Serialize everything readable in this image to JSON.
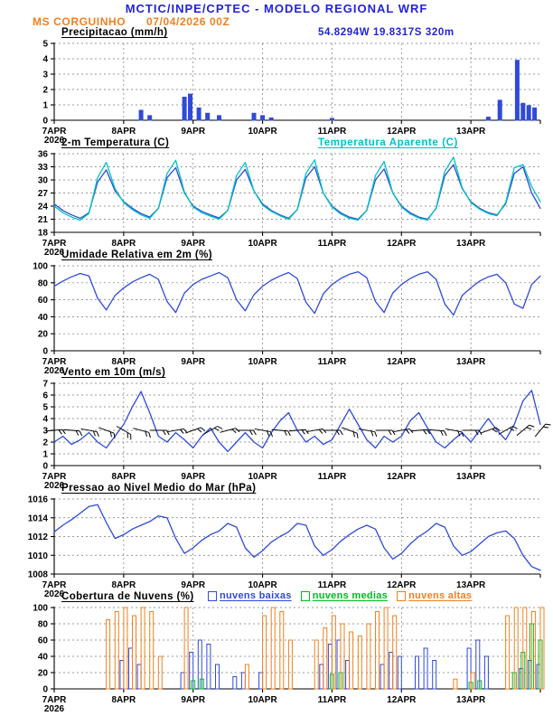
{
  "header": {
    "title": "MCTIC/INPE/CPTEC - MODELO REGIONAL WRF",
    "station": "MS CORGUINHO",
    "datetime": "07/04/2026 00Z",
    "location": "54.8294W 19.8317S 320m"
  },
  "colors": {
    "title": "#2323d7",
    "accent_orange": "#f08020",
    "line_blue": "#2f4bd7",
    "cyan": "#00c2c2",
    "green": "#00bb22",
    "grid": "#777777"
  },
  "x_axis": {
    "hours": 168,
    "day_labels": [
      "7APR",
      "8APR",
      "9APR",
      "10APR",
      "11APR",
      "12APR",
      "13APR"
    ],
    "year_label": "2026"
  },
  "chart_data": [
    {
      "id": "precipitacao",
      "type": "bar",
      "title": "Precipitacao (mm/h)",
      "ylim": [
        0,
        5
      ],
      "yticks": [
        0,
        1,
        2,
        3,
        4,
        5
      ],
      "series": [
        {
          "name": "precipitacao",
          "type": "bar",
          "filled": true,
          "color": "#2f4bd7",
          "x": [
            30,
            33,
            45,
            47,
            50,
            53,
            57,
            69,
            72,
            75,
            96,
            150,
            154,
            160,
            162,
            164,
            166
          ],
          "values": [
            0.65,
            0.3,
            1.5,
            1.7,
            0.8,
            0.45,
            0.3,
            0.45,
            0.3,
            0.15,
            0.12,
            0.2,
            1.3,
            3.9,
            1.1,
            0.95,
            0.8
          ]
        }
      ]
    },
    {
      "id": "temperatura",
      "type": "line",
      "title": "2-m Temperatura (C)",
      "ylim": [
        18,
        36
      ],
      "yticks": [
        18,
        21,
        24,
        27,
        30,
        33,
        36
      ],
      "series": [
        {
          "name": "2-m Temperatura (C)",
          "type": "line",
          "color": "#2f4bd7",
          "x_start": 0,
          "x_step": 3,
          "values": [
            24.5,
            23.0,
            22.0,
            21.2,
            22.5,
            29.5,
            32.3,
            27.5,
            25.0,
            23.5,
            22.3,
            21.5,
            23.5,
            30.5,
            32.8,
            27.0,
            24.0,
            22.8,
            22.0,
            21.3,
            23.0,
            30.0,
            32.4,
            27.5,
            24.5,
            23.0,
            22.0,
            21.2,
            23.2,
            30.5,
            33.0,
            27.0,
            24.0,
            22.5,
            21.5,
            21.0,
            23.0,
            30.0,
            32.5,
            27.0,
            24.0,
            22.5,
            21.5,
            21.0,
            23.5,
            31.0,
            33.5,
            28.0,
            25.0,
            23.5,
            22.5,
            22.0,
            24.5,
            31.5,
            33.0,
            27.0,
            23.5
          ]
        },
        {
          "name": "Temperatura Aparente (C)",
          "type": "line",
          "color": "#00c2c2",
          "x_start": 0,
          "x_step": 3,
          "values": [
            24.0,
            22.5,
            21.5,
            20.8,
            22.3,
            30.5,
            34.0,
            28.0,
            24.8,
            23.2,
            22.0,
            21.2,
            23.5,
            31.5,
            34.5,
            27.2,
            23.8,
            22.5,
            21.7,
            21.0,
            23.0,
            31.0,
            34.0,
            27.5,
            24.2,
            22.8,
            21.8,
            21.0,
            23.2,
            31.5,
            34.6,
            27.0,
            23.8,
            22.2,
            21.2,
            20.8,
            23.0,
            31.0,
            34.2,
            27.0,
            23.8,
            22.2,
            21.3,
            20.8,
            23.6,
            32.0,
            35.2,
            28.2,
            24.8,
            23.3,
            22.3,
            21.8,
            24.8,
            32.8,
            33.5,
            28.5,
            25.0
          ]
        }
      ]
    },
    {
      "id": "umidade",
      "type": "line",
      "title": "Umidade Relativa em 2m (%)",
      "ylim": [
        0,
        100
      ],
      "yticks": [
        0,
        20,
        40,
        60,
        80,
        100
      ],
      "series": [
        {
          "name": "umidade relativa",
          "type": "line",
          "color": "#2f4bd7",
          "x_start": 0,
          "x_step": 3,
          "values": [
            76,
            82,
            87,
            91,
            88,
            62,
            48,
            65,
            74,
            81,
            86,
            90,
            84,
            58,
            45,
            68,
            78,
            84,
            88,
            92,
            86,
            60,
            47,
            66,
            76,
            83,
            88,
            92,
            85,
            57,
            44,
            67,
            78,
            85,
            90,
            93,
            86,
            58,
            45,
            68,
            78,
            85,
            90,
            93,
            84,
            55,
            42,
            65,
            74,
            82,
            87,
            90,
            80,
            55,
            50,
            78,
            88
          ]
        }
      ]
    },
    {
      "id": "vento",
      "type": "line",
      "title": "Vento em 10m (m/s)",
      "ylim": [
        0,
        7
      ],
      "yticks": [
        0,
        1,
        2,
        3,
        4,
        5,
        6,
        7
      ],
      "series": [
        {
          "name": "velocidade do vento",
          "type": "line",
          "color": "#2f4bd7",
          "x_start": 0,
          "x_step": 3,
          "values": [
            2.0,
            2.5,
            1.8,
            2.2,
            2.8,
            2.0,
            1.5,
            2.5,
            3.5,
            5.0,
            6.3,
            4.5,
            2.5,
            2.0,
            2.8,
            2.2,
            1.5,
            2.5,
            3.2,
            2.0,
            1.2,
            2.0,
            2.8,
            2.0,
            1.5,
            2.8,
            3.8,
            4.5,
            3.0,
            2.0,
            2.5,
            1.8,
            2.2,
            3.5,
            4.8,
            3.5,
            2.2,
            1.5,
            2.5,
            2.0,
            2.5,
            3.8,
            4.5,
            3.2,
            2.0,
            1.5,
            2.2,
            2.8,
            2.0,
            3.0,
            4.0,
            3.0,
            2.2,
            3.5,
            5.5,
            6.4,
            3.5
          ]
        },
        {
          "name": "barbelas de vento",
          "type": "barbs",
          "color": "#000000",
          "y": 3,
          "x_start": 0,
          "x_step": 6,
          "dirs": [
            85,
            95,
            100,
            110,
            120,
            105,
            90,
            80,
            70,
            60,
            75,
            90,
            100,
            95,
            85,
            80,
            90,
            110,
            100,
            90,
            80,
            85,
            95,
            100,
            90,
            70,
            60,
            50,
            40
          ]
        }
      ]
    },
    {
      "id": "pressao",
      "type": "line",
      "title": "Pressao ao Nivel Medio do Mar (hPa)",
      "ylim": [
        1008,
        1016
      ],
      "yticks": [
        1008,
        1010,
        1012,
        1014,
        1016
      ],
      "series": [
        {
          "name": "pressao nivel do mar",
          "type": "line",
          "color": "#2f4bd7",
          "x_start": 0,
          "x_step": 3,
          "values": [
            1012.5,
            1013.2,
            1013.8,
            1014.5,
            1015.2,
            1015.4,
            1013.5,
            1011.8,
            1012.2,
            1012.8,
            1013.2,
            1013.6,
            1014.2,
            1014.0,
            1011.8,
            1010.2,
            1010.8,
            1011.6,
            1012.2,
            1012.6,
            1013.4,
            1013.0,
            1010.8,
            1009.8,
            1010.5,
            1011.4,
            1012.0,
            1012.5,
            1013.4,
            1013.2,
            1011.0,
            1010.0,
            1010.6,
            1011.5,
            1012.2,
            1012.8,
            1013.2,
            1012.8,
            1010.8,
            1009.6,
            1010.2,
            1011.2,
            1012.0,
            1012.6,
            1013.4,
            1013.0,
            1011.0,
            1010.0,
            1010.4,
            1011.2,
            1012.0,
            1012.4,
            1012.6,
            1011.8,
            1010.0,
            1008.8,
            1008.4
          ]
        }
      ]
    },
    {
      "id": "nuvens",
      "type": "bar",
      "title": "Cobertura de Nuvens (%)",
      "ylim": [
        0,
        100
      ],
      "yticks": [
        0,
        20,
        40,
        60,
        80,
        100
      ],
      "series": [
        {
          "name": "nuvens baixas",
          "type": "bar",
          "color": "#2f4bd7",
          "x": [
            24,
            27,
            30,
            45,
            48,
            51,
            54,
            57,
            63,
            66,
            72,
            93,
            96,
            99,
            102,
            114,
            117,
            120,
            126,
            129,
            132,
            144,
            147,
            150,
            162,
            165,
            168
          ],
          "values": [
            35,
            50,
            30,
            20,
            45,
            60,
            55,
            30,
            15,
            20,
            20,
            30,
            55,
            60,
            35,
            30,
            45,
            40,
            40,
            50,
            35,
            50,
            60,
            40,
            25,
            35,
            30
          ]
        },
        {
          "name": "nuvens medias",
          "type": "bar",
          "color": "#00bb22",
          "x": [
            48,
            51,
            96,
            99,
            144,
            147,
            159,
            162,
            165,
            168
          ],
          "values": [
            10,
            12,
            18,
            20,
            8,
            10,
            20,
            45,
            80,
            60
          ]
        },
        {
          "name": "nuvens altas",
          "type": "bar",
          "color": "#f08020",
          "x": [
            18,
            21,
            24,
            27,
            30,
            33,
            36,
            45,
            66,
            72,
            75,
            78,
            81,
            90,
            93,
            96,
            99,
            102,
            105,
            108,
            111,
            114,
            117,
            138,
            144,
            156,
            159,
            162,
            165,
            168
          ],
          "values": [
            85,
            95,
            100,
            90,
            100,
            95,
            40,
            100,
            30,
            90,
            100,
            95,
            60,
            60,
            75,
            90,
            80,
            70,
            65,
            80,
            95,
            100,
            90,
            12,
            20,
            90,
            100,
            100,
            95,
            100
          ]
        }
      ]
    }
  ]
}
